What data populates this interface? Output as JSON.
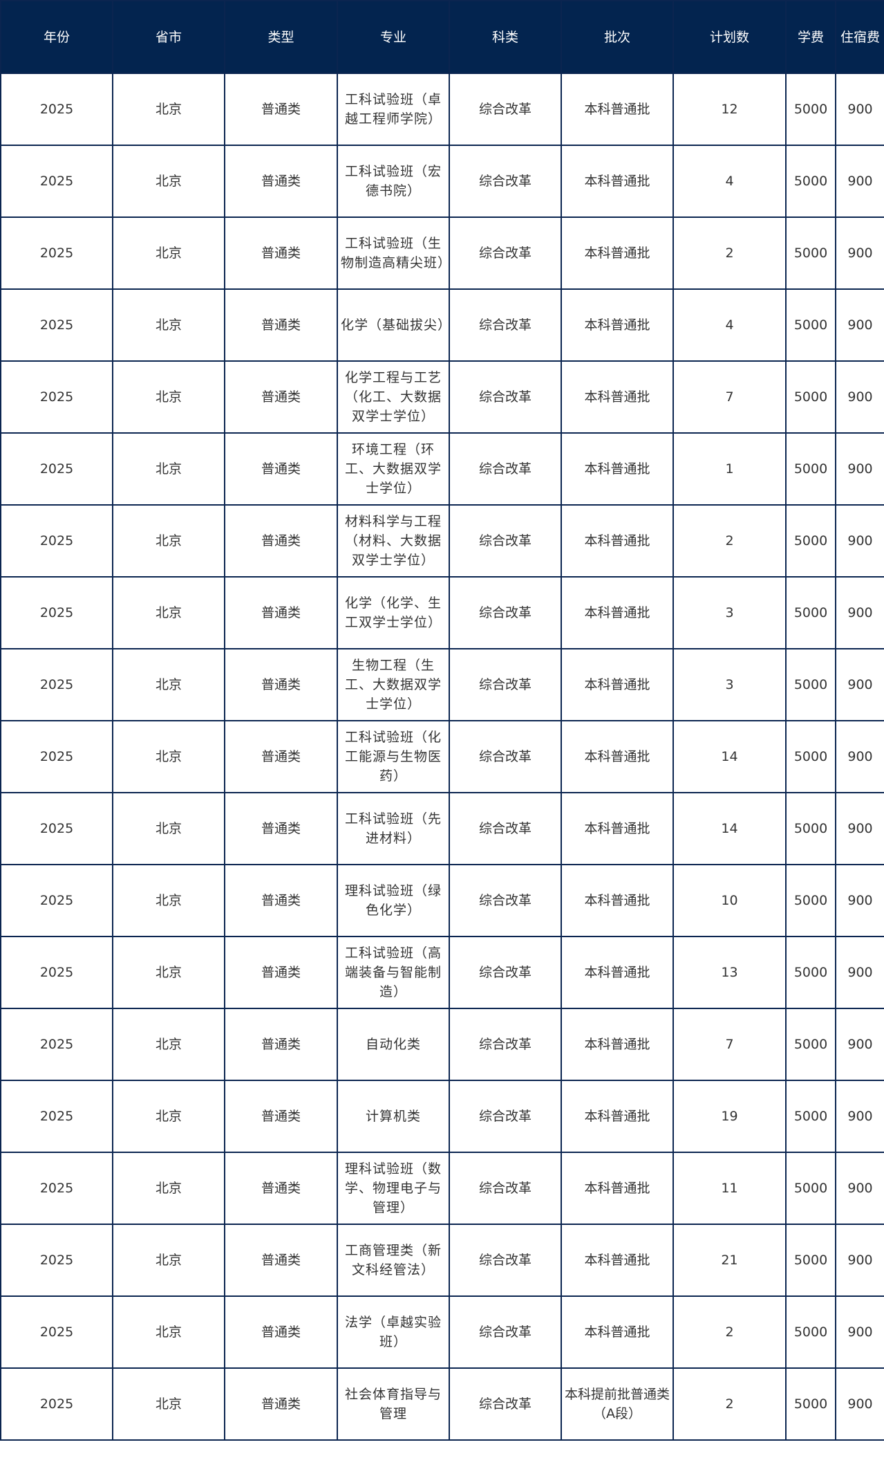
{
  "colors": {
    "header_bg": "#03244f",
    "border": "#0b2550",
    "header_text": "#ffffff",
    "cell_text": "#333333"
  },
  "headers": [
    "年份",
    "省市",
    "类型",
    "专业",
    "科类",
    "批次",
    "计划数",
    "学费",
    "住宿费"
  ],
  "rows": [
    [
      "2025",
      "北京",
      "普通类",
      "工科试验班（卓越工程师学院）",
      "综合改革",
      "本科普通批",
      "12",
      "5000",
      "900"
    ],
    [
      "2025",
      "北京",
      "普通类",
      "工科试验班（宏德书院）",
      "综合改革",
      "本科普通批",
      "4",
      "5000",
      "900"
    ],
    [
      "2025",
      "北京",
      "普通类",
      "工科试验班（生物制造高精尖班）",
      "综合改革",
      "本科普通批",
      "2",
      "5000",
      "900"
    ],
    [
      "2025",
      "北京",
      "普通类",
      "化学（基础拔尖）",
      "综合改革",
      "本科普通批",
      "4",
      "5000",
      "900"
    ],
    [
      "2025",
      "北京",
      "普通类",
      "化学工程与工艺（化工、大数据双学士学位）",
      "综合改革",
      "本科普通批",
      "7",
      "5000",
      "900"
    ],
    [
      "2025",
      "北京",
      "普通类",
      "环境工程（环工、大数据双学士学位）",
      "综合改革",
      "本科普通批",
      "1",
      "5000",
      "900"
    ],
    [
      "2025",
      "北京",
      "普通类",
      "材料科学与工程（材料、大数据双学士学位）",
      "综合改革",
      "本科普通批",
      "2",
      "5000",
      "900"
    ],
    [
      "2025",
      "北京",
      "普通类",
      "化学（化学、生工双学士学位）",
      "综合改革",
      "本科普通批",
      "3",
      "5000",
      "900"
    ],
    [
      "2025",
      "北京",
      "普通类",
      "生物工程（生工、大数据双学士学位）",
      "综合改革",
      "本科普通批",
      "3",
      "5000",
      "900"
    ],
    [
      "2025",
      "北京",
      "普通类",
      "工科试验班（化工能源与生物医药）",
      "综合改革",
      "本科普通批",
      "14",
      "5000",
      "900"
    ],
    [
      "2025",
      "北京",
      "普通类",
      "工科试验班（先进材料）",
      "综合改革",
      "本科普通批",
      "14",
      "5000",
      "900"
    ],
    [
      "2025",
      "北京",
      "普通类",
      "理科试验班（绿色化学）",
      "综合改革",
      "本科普通批",
      "10",
      "5000",
      "900"
    ],
    [
      "2025",
      "北京",
      "普通类",
      "工科试验班（高端装备与智能制造）",
      "综合改革",
      "本科普通批",
      "13",
      "5000",
      "900"
    ],
    [
      "2025",
      "北京",
      "普通类",
      "自动化类",
      "综合改革",
      "本科普通批",
      "7",
      "5000",
      "900"
    ],
    [
      "2025",
      "北京",
      "普通类",
      "计算机类",
      "综合改革",
      "本科普通批",
      "19",
      "5000",
      "900"
    ],
    [
      "2025",
      "北京",
      "普通类",
      "理科试验班（数学、物理电子与管理）",
      "综合改革",
      "本科普通批",
      "11",
      "5000",
      "900"
    ],
    [
      "2025",
      "北京",
      "普通类",
      "工商管理类（新文科经管法）",
      "综合改革",
      "本科普通批",
      "21",
      "5000",
      "900"
    ],
    [
      "2025",
      "北京",
      "普通类",
      "法学（卓越实验班）",
      "综合改革",
      "本科普通批",
      "2",
      "5000",
      "900"
    ],
    [
      "2025",
      "北京",
      "普通类",
      "社会体育指导与管理",
      "综合改革",
      "本科提前批普通类（A段）",
      "2",
      "5000",
      "900"
    ]
  ]
}
